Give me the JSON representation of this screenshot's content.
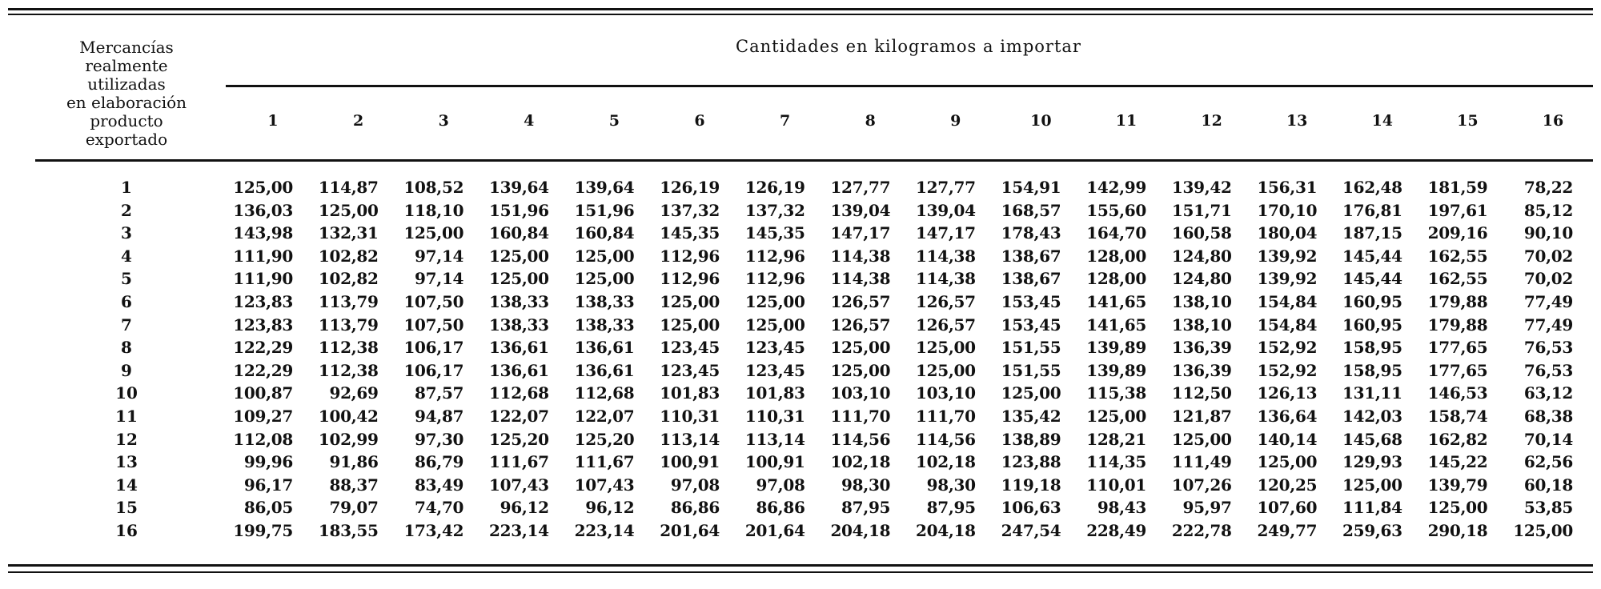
{
  "header": {
    "row_label_header": [
      "Mercancías",
      "realmente",
      "utilizadas",
      "en elaboración",
      "producto",
      "exportado"
    ],
    "title": "Cantidades en kilogramos a importar",
    "columns": [
      "1",
      "2",
      "3",
      "4",
      "5",
      "6",
      "7",
      "8",
      "9",
      "10",
      "11",
      "12",
      "13",
      "14",
      "15",
      "16"
    ]
  },
  "rows": [
    {
      "label": "1",
      "values": [
        "125,00",
        "114,87",
        "108,52",
        "139,64",
        "139,64",
        "126,19",
        "126,19",
        "127,77",
        "127,77",
        "154,91",
        "142,99",
        "139,42",
        "156,31",
        "162,48",
        "181,59",
        "78,22"
      ]
    },
    {
      "label": "2",
      "values": [
        "136,03",
        "125,00",
        "118,10",
        "151,96",
        "151,96",
        "137,32",
        "137,32",
        "139,04",
        "139,04",
        "168,57",
        "155,60",
        "151,71",
        "170,10",
        "176,81",
        "197,61",
        "85,12"
      ]
    },
    {
      "label": "3",
      "values": [
        "143,98",
        "132,31",
        "125,00",
        "160,84",
        "160,84",
        "145,35",
        "145,35",
        "147,17",
        "147,17",
        "178,43",
        "164,70",
        "160,58",
        "180,04",
        "187,15",
        "209,16",
        "90,10"
      ]
    },
    {
      "label": "4",
      "values": [
        "111,90",
        "102,82",
        "97,14",
        "125,00",
        "125,00",
        "112,96",
        "112,96",
        "114,38",
        "114,38",
        "138,67",
        "128,00",
        "124,80",
        "139,92",
        "145,44",
        "162,55",
        "70,02"
      ]
    },
    {
      "label": "5",
      "values": [
        "111,90",
        "102,82",
        "97,14",
        "125,00",
        "125,00",
        "112,96",
        "112,96",
        "114,38",
        "114,38",
        "138,67",
        "128,00",
        "124,80",
        "139,92",
        "145,44",
        "162,55",
        "70,02"
      ]
    },
    {
      "label": "6",
      "values": [
        "123,83",
        "113,79",
        "107,50",
        "138,33",
        "138,33",
        "125,00",
        "125,00",
        "126,57",
        "126,57",
        "153,45",
        "141,65",
        "138,10",
        "154,84",
        "160,95",
        "179,88",
        "77,49"
      ]
    },
    {
      "label": "7",
      "values": [
        "123,83",
        "113,79",
        "107,50",
        "138,33",
        "138,33",
        "125,00",
        "125,00",
        "126,57",
        "126,57",
        "153,45",
        "141,65",
        "138,10",
        "154,84",
        "160,95",
        "179,88",
        "77,49"
      ]
    },
    {
      "label": "8",
      "values": [
        "122,29",
        "112,38",
        "106,17",
        "136,61",
        "136,61",
        "123,45",
        "123,45",
        "125,00",
        "125,00",
        "151,55",
        "139,89",
        "136,39",
        "152,92",
        "158,95",
        "177,65",
        "76,53"
      ]
    },
    {
      "label": "9",
      "values": [
        "122,29",
        "112,38",
        "106,17",
        "136,61",
        "136,61",
        "123,45",
        "123,45",
        "125,00",
        "125,00",
        "151,55",
        "139,89",
        "136,39",
        "152,92",
        "158,95",
        "177,65",
        "76,53"
      ]
    },
    {
      "label": "10",
      "values": [
        "100,87",
        "92,69",
        "87,57",
        "112,68",
        "112,68",
        "101,83",
        "101,83",
        "103,10",
        "103,10",
        "125,00",
        "115,38",
        "112,50",
        "126,13",
        "131,11",
        "146,53",
        "63,12"
      ]
    },
    {
      "label": "11",
      "values": [
        "109,27",
        "100,42",
        "94,87",
        "122,07",
        "122,07",
        "110,31",
        "110,31",
        "111,70",
        "111,70",
        "135,42",
        "125,00",
        "121,87",
        "136,64",
        "142,03",
        "158,74",
        "68,38"
      ]
    },
    {
      "label": "12",
      "values": [
        "112,08",
        "102,99",
        "97,30",
        "125,20",
        "125,20",
        "113,14",
        "113,14",
        "114,56",
        "114,56",
        "138,89",
        "128,21",
        "125,00",
        "140,14",
        "145,68",
        "162,82",
        "70,14"
      ]
    },
    {
      "label": "13",
      "values": [
        "99,96",
        "91,86",
        "86,79",
        "111,67",
        "111,67",
        "100,91",
        "100,91",
        "102,18",
        "102,18",
        "123,88",
        "114,35",
        "111,49",
        "125,00",
        "129,93",
        "145,22",
        "62,56"
      ]
    },
    {
      "label": "14",
      "values": [
        "96,17",
        "88,37",
        "83,49",
        "107,43",
        "107,43",
        "97,08",
        "97,08",
        "98,30",
        "98,30",
        "119,18",
        "110,01",
        "107,26",
        "120,25",
        "125,00",
        "139,79",
        "60,18"
      ]
    },
    {
      "label": "15",
      "values": [
        "86,05",
        "79,07",
        "74,70",
        "96,12",
        "96,12",
        "86,86",
        "86,86",
        "87,95",
        "87,95",
        "106,63",
        "98,43",
        "95,97",
        "107,60",
        "111,84",
        "125,00",
        "53,85"
      ]
    },
    {
      "label": "16",
      "values": [
        "199,75",
        "183,55",
        "173,42",
        "223,14",
        "223,14",
        "201,64",
        "201,64",
        "204,18",
        "204,18",
        "247,54",
        "228,49",
        "222,78",
        "249,77",
        "259,63",
        "290,18",
        "125,00"
      ]
    }
  ]
}
